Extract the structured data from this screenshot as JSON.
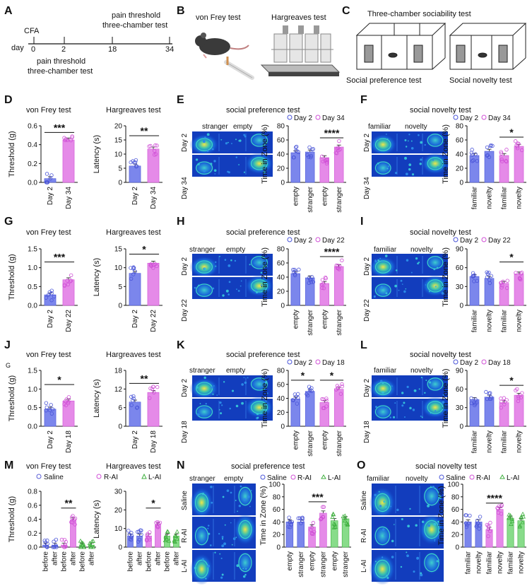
{
  "colors": {
    "blue": "#7b86ec",
    "pink": "#e58ae8",
    "green": "#88dc8a",
    "dot": "#5a5fd6",
    "hm_bg": "#123dbd"
  },
  "panels": {
    "A": {
      "label": "A",
      "day_label": "day",
      "ticks": [
        "0",
        "2",
        "18",
        "34"
      ],
      "cfa": "CFA",
      "top1": "pain threshold",
      "top2": "three-chamber test",
      "bot1": "pain threshold",
      "bot2": "three-chamber test"
    },
    "B": {
      "label": "B",
      "left_title": "von Frey test",
      "right_title": "Hargreaves test"
    },
    "C": {
      "label": "C",
      "title": "Three-chamber sociability test",
      "left_caption": "Social preference test",
      "right_caption": "Social novelty test"
    },
    "D": {
      "label": "D",
      "title_left": "von Frey test",
      "title_right": "Hargreaves test"
    },
    "E": {
      "label": "E",
      "title": "social preference test",
      "col_left": "stranger",
      "col_right": "empty",
      "row1": "Day 2",
      "row2": "Day 34"
    },
    "F": {
      "label": "F",
      "title": "social novelty test",
      "col_left": "familiar",
      "col_right": "novelty",
      "row1": "Day 2",
      "row2": "Day 34"
    },
    "G": {
      "label": "G",
      "title_left": "von Frey test",
      "title_right": "Hargreaves test"
    },
    "H": {
      "label": "H",
      "title": "social preference test",
      "col_left": "stranger",
      "col_right": "empty",
      "row1": "Day 2",
      "row2": "Day 22"
    },
    "I": {
      "label": "I",
      "title": "social novelty test",
      "col_left": "familiar",
      "col_right": "novelty",
      "row1": "Day 2",
      "row2": "Day 22"
    },
    "J": {
      "label": "J",
      "sub": "G",
      "title_left": "von Frey test",
      "title_right": "Hargreaves test"
    },
    "K": {
      "label": "K",
      "title": "social preference test",
      "col_left": "stranger",
      "col_right": "empty",
      "row1": "Day 2",
      "row2": "Day 18"
    },
    "L": {
      "label": "L",
      "title": "social novelty test",
      "col_left": "familiar",
      "col_right": "novelty",
      "row1": "Day 2",
      "row2": "Day 18"
    },
    "M": {
      "label": "M",
      "title_left": "von Frey test",
      "title_right": "Hargreaves test",
      "legend": [
        "Saline",
        "R-AI",
        "L-AI"
      ]
    },
    "N": {
      "label": "N",
      "title": "social preference test",
      "col_left": "stranger",
      "col_right": "empty",
      "rows": [
        "Saline",
        "R-AI",
        "L-AI"
      ],
      "legend": [
        "Saline",
        "R-AI",
        "L-AI"
      ]
    },
    "O": {
      "label": "O",
      "title": "social novelty test",
      "col_left": "familiar",
      "col_right": "novelty",
      "rows": [
        "Saline",
        "R-AI",
        "L-AI"
      ],
      "legend": [
        "Saline",
        "R-AI",
        "L-AI"
      ]
    }
  },
  "chart_data": [
    {
      "id": "D1",
      "type": "bar",
      "ylabel": "Threshold (g)",
      "ylim": [
        0,
        0.6
      ],
      "yticks": [
        "0.0",
        "0.2",
        "0.4",
        "0.6"
      ],
      "categories": [
        "Day 2",
        "Day 34"
      ],
      "values": [
        0.04,
        0.45
      ],
      "colors": [
        "blue",
        "pink"
      ],
      "sig": [
        {
          "from": 0,
          "to": 1,
          "y": 0.53,
          "text": "***"
        }
      ]
    },
    {
      "id": "D2",
      "type": "bar",
      "ylabel": "Latency (s)",
      "ylim": [
        0,
        20
      ],
      "yticks": [
        "0",
        "5",
        "10",
        "15",
        "20"
      ],
      "categories": [
        "Day 2",
        "Day 34"
      ],
      "values": [
        5.8,
        11.8
      ],
      "colors": [
        "blue",
        "pink"
      ],
      "sig": [
        {
          "from": 0,
          "to": 1,
          "y": 16.5,
          "text": "**"
        }
      ]
    },
    {
      "id": "E",
      "type": "bar",
      "ylabel": "Time in Zone (%)",
      "ylim": [
        0,
        80
      ],
      "yticks": [
        "0",
        "20",
        "40",
        "60",
        "80"
      ],
      "categories": [
        "empty",
        "stranger",
        "empty",
        "stranger"
      ],
      "values": [
        42,
        43,
        35,
        50
      ],
      "colors": [
        "blue",
        "blue",
        "pink",
        "pink"
      ],
      "legend": [
        "Day 2",
        "Day 34"
      ],
      "sig": [
        {
          "from": 2,
          "to": 3,
          "y": 63,
          "text": "****"
        }
      ]
    },
    {
      "id": "F",
      "type": "bar",
      "ylabel": "Time in Zone (%)",
      "ylim": [
        0,
        80
      ],
      "yticks": [
        "0",
        "20",
        "40",
        "60",
        "80"
      ],
      "categories": [
        "familiar",
        "novelty",
        "familiar",
        "novelty"
      ],
      "values": [
        38,
        44,
        38,
        51
      ],
      "colors": [
        "blue",
        "blue",
        "pink",
        "pink"
      ],
      "legend": [
        "Day 2",
        "Day 34"
      ],
      "sig": [
        {
          "from": 2,
          "to": 3,
          "y": 64,
          "text": "*"
        }
      ]
    },
    {
      "id": "G1",
      "type": "bar",
      "ylabel": "Threshold (g)",
      "ylim": [
        0,
        1.5
      ],
      "yticks": [
        "0.0",
        "0.5",
        "1.0",
        "1.5"
      ],
      "categories": [
        "Day 2",
        "Day 22"
      ],
      "values": [
        0.28,
        0.68
      ],
      "colors": [
        "blue",
        "pink"
      ],
      "sig": [
        {
          "from": 0,
          "to": 1,
          "y": 1.15,
          "text": "***"
        }
      ]
    },
    {
      "id": "G2",
      "type": "bar",
      "ylabel": "Latency (s)",
      "ylim": [
        0,
        15
      ],
      "yticks": [
        "0",
        "5",
        "10",
        "15"
      ],
      "categories": [
        "Day 2",
        "Day 22"
      ],
      "values": [
        8.5,
        11.2
      ],
      "colors": [
        "blue",
        "pink"
      ],
      "sig": [
        {
          "from": 0,
          "to": 1,
          "y": 13.6,
          "text": "*"
        }
      ]
    },
    {
      "id": "H",
      "type": "bar",
      "ylabel": "Time in Zone (%)",
      "ylim": [
        0,
        80
      ],
      "yticks": [
        "0",
        "20",
        "40",
        "60",
        "80"
      ],
      "categories": [
        "empty",
        "stranger",
        "empty",
        "stranger"
      ],
      "values": [
        45,
        39,
        31,
        55
      ],
      "colors": [
        "blue",
        "blue",
        "pink",
        "pink"
      ],
      "legend": [
        "Day 2",
        "Day 22"
      ],
      "sig": [
        {
          "from": 2,
          "to": 3,
          "y": 69,
          "text": "****"
        }
      ]
    },
    {
      "id": "I",
      "type": "bar",
      "ylabel": "Time in Zone (%)",
      "ylim": [
        0,
        90
      ],
      "yticks": [
        "0",
        "30",
        "60",
        "90"
      ],
      "categories": [
        "familiar",
        "novelty",
        "familiar",
        "novelty"
      ],
      "values": [
        46,
        43,
        35,
        50
      ],
      "colors": [
        "blue",
        "blue",
        "pink",
        "pink"
      ],
      "legend": [
        "Day 2",
        "Day 22"
      ],
      "sig": [
        {
          "from": 2,
          "to": 3,
          "y": 69,
          "text": "*"
        }
      ]
    },
    {
      "id": "J1",
      "type": "bar",
      "ylabel": "Threshold (g)",
      "ylim": [
        0,
        1.5
      ],
      "yticks": [
        "0.0",
        "0.5",
        "1.0",
        "1.5"
      ],
      "categories": [
        "Day 2",
        "Day 18"
      ],
      "values": [
        0.46,
        0.68
      ],
      "colors": [
        "blue",
        "pink"
      ],
      "sig": [
        {
          "from": 0,
          "to": 1,
          "y": 1.12,
          "text": "*"
        }
      ]
    },
    {
      "id": "J2",
      "type": "bar",
      "ylabel": "Latency (s)",
      "ylim": [
        0,
        18
      ],
      "yticks": [
        "0",
        "6",
        "12",
        "18"
      ],
      "categories": [
        "Day 2",
        "Day 18"
      ],
      "values": [
        7.8,
        10.9
      ],
      "colors": [
        "blue",
        "pink"
      ],
      "sig": [
        {
          "from": 0,
          "to": 1,
          "y": 13.8,
          "text": "**"
        }
      ]
    },
    {
      "id": "K",
      "type": "bar",
      "ylabel": "Time in Zone (%)",
      "ylim": [
        0,
        80
      ],
      "yticks": [
        "0",
        "20",
        "40",
        "60",
        "80"
      ],
      "categories": [
        "empty",
        "stranger",
        "empty",
        "stranger"
      ],
      "values": [
        39,
        50,
        34,
        53
      ],
      "colors": [
        "blue",
        "blue",
        "pink",
        "pink"
      ],
      "legend": [
        "Day 2",
        "Day 18"
      ],
      "sig": [
        {
          "from": 0,
          "to": 1,
          "y": 66,
          "text": "*"
        },
        {
          "from": 2,
          "to": 3,
          "y": 66,
          "text": "*"
        }
      ]
    },
    {
      "id": "L",
      "type": "bar",
      "ylabel": "Time in Zone (%)",
      "ylim": [
        0,
        90
      ],
      "yticks": [
        "0",
        "30",
        "60",
        "90"
      ],
      "categories": [
        "familiar",
        "novelty",
        "familiar",
        "novelty"
      ],
      "values": [
        43,
        47,
        38,
        50
      ],
      "colors": [
        "blue",
        "blue",
        "pink",
        "pink"
      ],
      "legend": [
        "Day 2",
        "Day 18"
      ],
      "sig": [
        {
          "from": 2,
          "to": 3,
          "y": 66,
          "text": "*"
        }
      ]
    },
    {
      "id": "M1",
      "type": "bar",
      "ylabel": "Threshold (g)",
      "ylim": [
        0,
        0.8
      ],
      "yticks": [
        "0.0",
        "0.2",
        "0.4",
        "0.6",
        "0.8"
      ],
      "categories": [
        "before",
        "after",
        "before",
        "after",
        "before",
        "after"
      ],
      "values": [
        0.03,
        0.03,
        0.03,
        0.39,
        0.03,
        0.03
      ],
      "colors": [
        "blue",
        "blue",
        "pink",
        "pink",
        "green",
        "green"
      ],
      "sig": [
        {
          "from": 2,
          "to": 3,
          "y": 0.56,
          "text": "**"
        }
      ]
    },
    {
      "id": "M2",
      "type": "bar",
      "ylabel": "Latency (s)",
      "ylim": [
        0,
        30
      ],
      "yticks": [
        "0",
        "10",
        "20",
        "30"
      ],
      "categories": [
        "before",
        "after",
        "before",
        "after",
        "before",
        "after"
      ],
      "values": [
        6,
        6,
        6,
        12,
        6,
        6
      ],
      "colors": [
        "blue",
        "blue",
        "pink",
        "pink",
        "green",
        "green"
      ],
      "sig": [
        {
          "from": 2,
          "to": 3,
          "y": 21,
          "text": "*"
        }
      ]
    },
    {
      "id": "N",
      "type": "bar",
      "ylabel": "Time in Zone (%)",
      "ylim": [
        0,
        100
      ],
      "yticks": [
        "0",
        "20",
        "40",
        "60",
        "80",
        "100"
      ],
      "categories": [
        "empty",
        "stranger",
        "empty",
        "stranger",
        "empty",
        "stranger"
      ],
      "values": [
        40,
        40,
        32,
        54,
        42,
        45
      ],
      "colors": [
        "blue",
        "blue",
        "pink",
        "pink",
        "green",
        "green"
      ],
      "legend": [
        "Saline",
        "R-AI",
        "L-AI"
      ],
      "sig": [
        {
          "from": 2,
          "to": 3,
          "y": 72,
          "text": "***"
        }
      ]
    },
    {
      "id": "O",
      "type": "bar",
      "ylabel": "Time in Zone (%)",
      "ylim": [
        0,
        100
      ],
      "yticks": [
        "0",
        "20",
        "40",
        "60",
        "80",
        "100"
      ],
      "categories": [
        "familiar",
        "novelty",
        "familiar",
        "novelty",
        "familiar",
        "novelty"
      ],
      "values": [
        40,
        40,
        28,
        60,
        46,
        42
      ],
      "colors": [
        "blue",
        "blue",
        "pink",
        "pink",
        "green",
        "green"
      ],
      "legend": [
        "Saline",
        "R-AI",
        "L-AI"
      ],
      "sig": [
        {
          "from": 2,
          "to": 3,
          "y": 70,
          "text": "****"
        }
      ]
    }
  ]
}
